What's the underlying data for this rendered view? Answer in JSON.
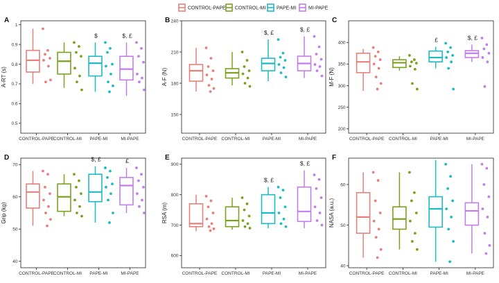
{
  "legend": {
    "items": [
      {
        "label": "CONTROL-PAPE",
        "color": "#e7807b"
      },
      {
        "label": "CONTROL-MI",
        "color": "#7aa21d"
      },
      {
        "label": "PAPE-MI",
        "color": "#1cbcc2"
      },
      {
        "label": "MI-PAPE",
        "color": "#c37cec"
      }
    ]
  },
  "chart_data": [
    {
      "panel": "A",
      "type": "box",
      "ylabel": "A-RT (s)",
      "categories": [
        "CONTROL-PAPE",
        "CONTROL-MI",
        "PAPE-MI",
        "MI-PAPE"
      ],
      "ylim": [
        0.45,
        1.02
      ],
      "yticks": [
        0.5,
        0.6,
        0.7,
        0.8,
        0.9,
        1.0
      ],
      "annotations": [
        "",
        "",
        "$",
        "$, £"
      ],
      "boxes": [
        {
          "min": 0.7,
          "q1": 0.76,
          "median": 0.82,
          "q3": 0.87,
          "max": 0.98
        },
        {
          "min": 0.68,
          "q1": 0.75,
          "median": 0.815,
          "q3": 0.86,
          "max": 0.91
        },
        {
          "min": 0.66,
          "q1": 0.74,
          "median": 0.805,
          "q3": 0.84,
          "max": 0.91
        },
        {
          "min": 0.64,
          "q1": 0.72,
          "median": 0.775,
          "q3": 0.84,
          "max": 0.91
        }
      ],
      "points": [
        [
          0.98,
          0.87,
          0.85,
          0.83,
          0.82,
          0.79,
          0.71,
          0.72
        ],
        [
          0.91,
          0.89,
          0.86,
          0.84,
          0.78,
          0.74,
          0.71,
          0.67
        ],
        [
          0.91,
          0.88,
          0.86,
          0.8,
          0.79,
          0.75,
          0.71,
          0.69,
          0.66
        ],
        [
          0.91,
          0.88,
          0.84,
          0.81,
          0.75,
          0.73,
          0.71,
          0.67
        ]
      ]
    },
    {
      "panel": "B",
      "type": "box",
      "ylabel": "A-F (N)",
      "categories": [
        "CONTROL-PAPE",
        "CONTROL-MI",
        "PAPE-MI",
        "MI-PAPE"
      ],
      "ylim": [
        132,
        240
      ],
      "yticks": [
        150,
        180,
        210,
        240
      ],
      "annotations": [
        "",
        "",
        "$, £",
        "$, £"
      ],
      "boxes": [
        {
          "min": 172,
          "q1": 182,
          "median": 192,
          "q3": 198,
          "max": 214
        },
        {
          "min": 178,
          "q1": 185,
          "median": 190,
          "q3": 194,
          "max": 210
        },
        {
          "min": 182,
          "q1": 192,
          "median": 199,
          "q3": 204,
          "max": 222
        },
        {
          "min": 185,
          "q1": 192,
          "median": 199,
          "q3": 206,
          "max": 225
        }
      ],
      "points": [
        [
          214,
          204,
          196,
          192,
          188,
          184,
          178,
          175,
          172
        ],
        [
          210,
          202,
          196,
          192,
          189,
          185,
          180,
          177
        ],
        [
          222,
          209,
          205,
          202,
          198,
          195,
          190,
          186
        ],
        [
          225,
          215,
          208,
          203,
          198,
          196,
          192,
          187
        ]
      ]
    },
    {
      "panel": "C",
      "type": "box",
      "ylabel": "M-F (N)",
      "categories": [
        "CONTROL-PAPE",
        "CONTROL-MI",
        "PAPE-MI",
        "MI-PAPE"
      ],
      "ylim": [
        190,
        450
      ],
      "yticks": [
        200,
        250,
        300,
        350,
        400
      ],
      "annotations": [
        "",
        "",
        "£",
        "$, £"
      ],
      "boxes": [
        {
          "min": 288,
          "q1": 330,
          "median": 355,
          "q3": 375,
          "max": 385
        },
        {
          "min": 335,
          "q1": 342,
          "median": 353,
          "q3": 360,
          "max": 368
        },
        {
          "min": 340,
          "q1": 355,
          "median": 365,
          "q3": 380,
          "max": 390
        },
        {
          "min": 355,
          "q1": 365,
          "median": 375,
          "q3": 381,
          "max": 395
        }
      ],
      "points": [
        [
          388,
          378,
          368,
          360,
          350,
          340,
          320,
          305,
          292
        ],
        [
          370,
          360,
          355,
          352,
          345,
          338,
          305,
          292
        ],
        [
          398,
          388,
          378,
          370,
          365,
          355,
          340,
          292
        ],
        [
          410,
          395,
          385,
          375,
          365,
          355,
          298
        ]
      ]
    },
    {
      "panel": "D",
      "type": "box",
      "ylabel": "Grip (kg)",
      "categories": [
        "CONTROL-PAPE",
        "CONTROL-MI",
        "PAPE-MI",
        "MI-PAPE"
      ],
      "ylim": [
        38,
        72
      ],
      "yticks": [
        40,
        50,
        60,
        70
      ],
      "annotations": [
        "",
        "",
        "$, £",
        "£"
      ],
      "boxes": [
        {
          "min": 51,
          "q1": 56.5,
          "median": 61.5,
          "q3": 64,
          "max": 68
        },
        {
          "min": 54,
          "q1": 55.5,
          "median": 60,
          "q3": 64,
          "max": 67
        },
        {
          "min": 52,
          "q1": 58.5,
          "median": 61.5,
          "q3": 67,
          "max": 69.5
        },
        {
          "min": 55,
          "q1": 57.5,
          "median": 63.5,
          "q3": 66,
          "max": 69
        }
      ],
      "points": [
        [
          68,
          67,
          63,
          61,
          59,
          57,
          55,
          53,
          51
        ],
        [
          67,
          65,
          63,
          61,
          59,
          57,
          55,
          54
        ],
        [
          69,
          68,
          66,
          64,
          63,
          61,
          59,
          55,
          52
        ],
        [
          69,
          67,
          65,
          63,
          61,
          59,
          57,
          55
        ]
      ]
    },
    {
      "panel": "E",
      "type": "box",
      "ylabel": "RSA (m)",
      "categories": [
        "CONTROL-PAPE",
        "CONTROL-MI",
        "PAPE-MI",
        "MI-PAPE"
      ],
      "ylim": [
        560,
        920
      ],
      "yticks": [
        600,
        700,
        800,
        900
      ],
      "annotations": [
        "",
        "",
        "$, £",
        "$, £"
      ],
      "boxes": [
        {
          "min": 680,
          "q1": 695,
          "median": 705,
          "q3": 770,
          "max": 800
        },
        {
          "min": 685,
          "q1": 695,
          "median": 715,
          "q3": 760,
          "max": 790
        },
        {
          "min": 690,
          "q1": 705,
          "median": 740,
          "q3": 800,
          "max": 825
        },
        {
          "min": 690,
          "q1": 712,
          "median": 745,
          "q3": 825,
          "max": 880
        }
      ],
      "points": [
        [
          795,
          780,
          760,
          740,
          720,
          705,
          695,
          688,
          682
        ],
        [
          790,
          770,
          750,
          730,
          715,
          705,
          695,
          690
        ],
        [
          825,
          815,
          790,
          760,
          740,
          720,
          705,
          695
        ],
        [
          865,
          850,
          820,
          790,
          760,
          740,
          715,
          700
        ]
      ]
    },
    {
      "panel": "F",
      "type": "box",
      "ylabel": "NASA (a.u.)",
      "categories": [
        "CONTROL-PAPE",
        "CONTROL-MI",
        "PAPE-MI",
        "MI-PAPE"
      ],
      "ylim": [
        39.5,
        66.5
      ],
      "yticks": [
        40,
        50,
        60
      ],
      "annotations": [
        "",
        "",
        "",
        ""
      ],
      "boxes": [
        {
          "min": 42,
          "q1": 48,
          "median": 52,
          "q3": 58,
          "max": 63
        },
        {
          "min": 44,
          "q1": 49,
          "median": 51.5,
          "q3": 54.5,
          "max": 63
        },
        {
          "min": 41,
          "q1": 49.5,
          "median": 54,
          "q3": 57,
          "max": 66
        },
        {
          "min": 43,
          "q1": 50,
          "median": 53.5,
          "q3": 55.5,
          "max": 65
        }
      ],
      "points": [
        [
          63,
          61,
          56,
          53,
          51,
          49,
          47,
          44,
          42
        ],
        [
          63,
          58,
          56,
          53,
          51,
          48,
          46,
          44
        ],
        [
          65,
          62,
          59,
          56,
          54,
          52,
          49,
          46,
          41
        ],
        [
          65,
          64,
          60,
          57,
          54,
          52,
          48,
          45,
          43
        ]
      ]
    }
  ]
}
